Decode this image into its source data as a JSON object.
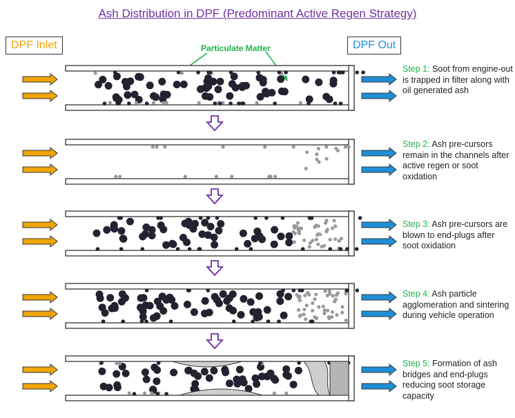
{
  "title": "Ash Distribution in DPF (Predominant Active Regen Strategy)",
  "inlet_label": "DPF Inlet",
  "outlet_label": "DPF Out",
  "pm_label": "Particulate Matter",
  "colors": {
    "title": "#7030a0",
    "inlet": "#f0a500",
    "outlet": "#1e8fd6",
    "step": "#22b04a",
    "down_arrow": "#7030a0",
    "soot": "#222230",
    "ash": "#999999"
  },
  "steps": [
    {
      "num": "Step 1:",
      "text": " Soot from engine-out is trapped in filter along with oil generated ash"
    },
    {
      "num": "Step 2:",
      "text": " Ash pre-cursors remain in the channels after active regen or soot oxidation"
    },
    {
      "num": "Step 3:",
      "text": " Ash pre-cursors are blown to end-plugs after soot oxidation"
    },
    {
      "num": "Step 4:",
      "text": " Ash particle agglomeration and sintering during vehicle operation"
    },
    {
      "num": "Step 5:",
      "text": " Formation of ash bridges and end-plugs reducing soot storage capacity"
    }
  ]
}
